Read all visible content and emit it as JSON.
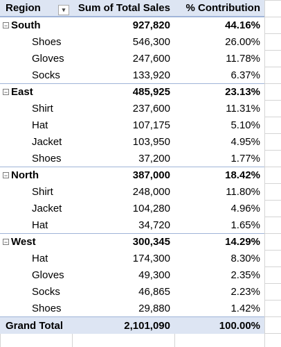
{
  "header": {
    "region_label": "Region",
    "sales_label": "Sum of Total Sales",
    "pct_label": "% Contribution",
    "filter_icon": "filter-dropdown-icon"
  },
  "regions": [
    {
      "name": "South",
      "total": "927,820",
      "pct": "44.16%",
      "items": [
        {
          "name": "Shoes",
          "sales": "546,300",
          "pct": "26.00%"
        },
        {
          "name": "Gloves",
          "sales": "247,600",
          "pct": "11.78%"
        },
        {
          "name": "Socks",
          "sales": "133,920",
          "pct": "6.37%"
        }
      ]
    },
    {
      "name": "East",
      "total": "485,925",
      "pct": "23.13%",
      "items": [
        {
          "name": "Shirt",
          "sales": "237,600",
          "pct": "11.31%"
        },
        {
          "name": "Hat",
          "sales": "107,175",
          "pct": "5.10%"
        },
        {
          "name": "Jacket",
          "sales": "103,950",
          "pct": "4.95%"
        },
        {
          "name": "Shoes",
          "sales": "37,200",
          "pct": "1.77%"
        }
      ]
    },
    {
      "name": "North",
      "total": "387,000",
      "pct": "18.42%",
      "items": [
        {
          "name": "Shirt",
          "sales": "248,000",
          "pct": "11.80%"
        },
        {
          "name": "Jacket",
          "sales": "104,280",
          "pct": "4.96%"
        },
        {
          "name": "Hat",
          "sales": "34,720",
          "pct": "1.65%"
        }
      ]
    },
    {
      "name": "West",
      "total": "300,345",
      "pct": "14.29%",
      "items": [
        {
          "name": "Hat",
          "sales": "174,300",
          "pct": "8.30%"
        },
        {
          "name": "Gloves",
          "sales": "49,300",
          "pct": "2.35%"
        },
        {
          "name": "Socks",
          "sales": "46,865",
          "pct": "2.23%"
        },
        {
          "name": "Shoes",
          "sales": "29,880",
          "pct": "1.42%"
        }
      ]
    }
  ],
  "grand_total": {
    "label": "Grand Total",
    "sales": "2,101,090",
    "pct": "100.00%"
  },
  "colors": {
    "header_bg": "#dde5f3",
    "header_border": "#9fb4d8",
    "gridline": "#d4d4d4"
  }
}
